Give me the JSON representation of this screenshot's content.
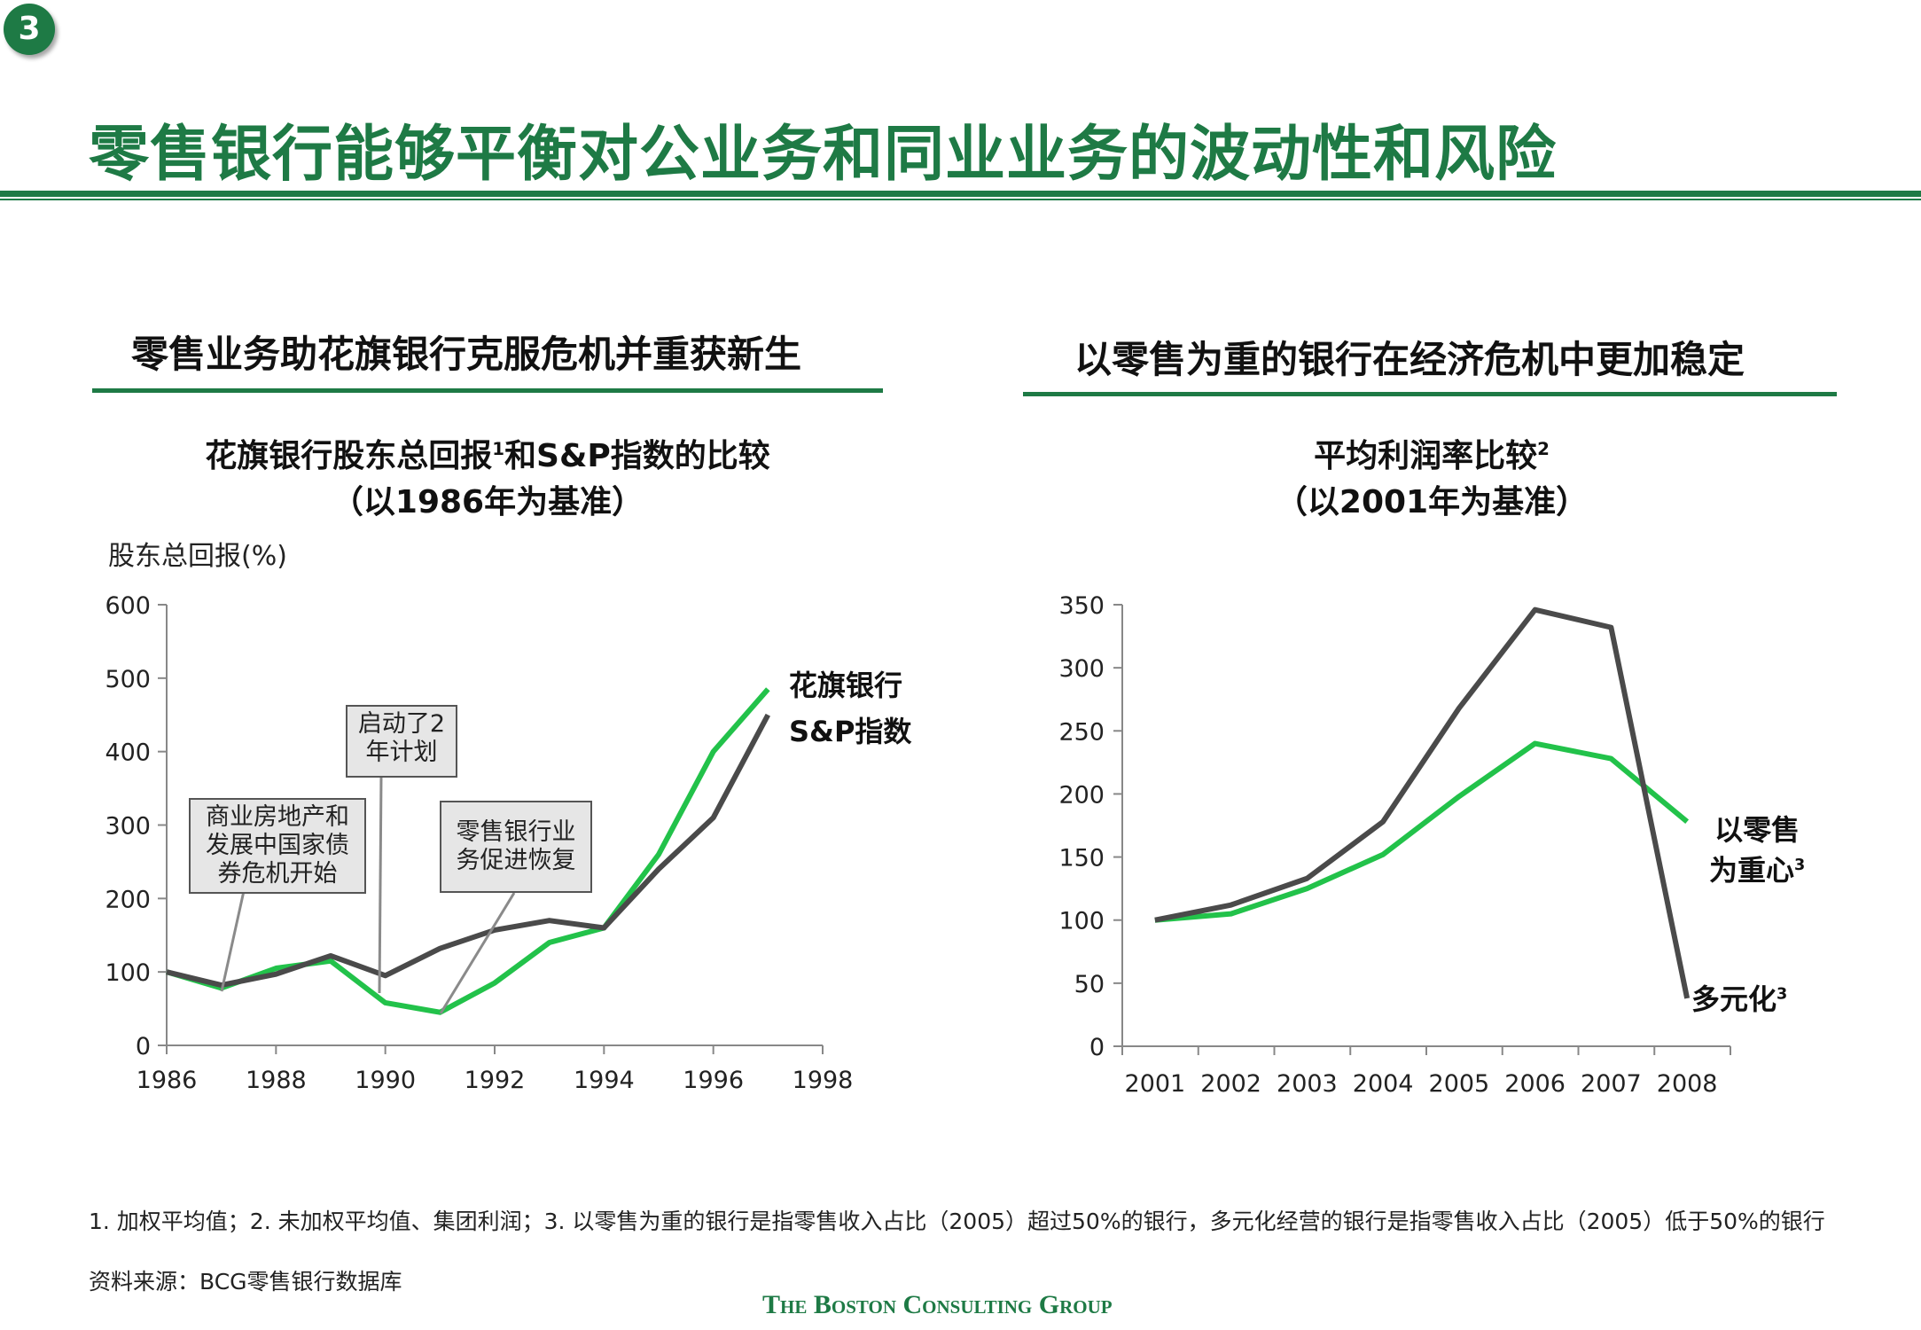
{
  "page": {
    "badge": "3",
    "title": "零售银行能够平衡对公业务和同业业务的波动性和风险",
    "footnote": "1. 加权平均值；2. 未加权平均值、集团利润；3. 以零售为重的银行是指零售收入占比（2005）超过50%的银行，多元化经营的银行是指零售收入占比（2005）低于50%的银行",
    "source": "资料来源：BCG零售银行数据库",
    "brand": "The Boston Consulting Group",
    "colors": {
      "green": "#22c24a",
      "dark": "#4a4a4a",
      "brand": "#1e7a45"
    }
  },
  "left": {
    "panel_title": "零售业务助花旗银行克服危机并重获新生",
    "subtitle_line1_a": "花旗银行股东总回报",
    "subtitle_sup": "1",
    "subtitle_line1_b": "和S&P指数的比较",
    "subtitle_line2": "（以1986年为基准）",
    "ylabel": "股东总回报(%)",
    "callouts": {
      "c1": "商业房地产和发展中国家债券危机开始",
      "c2": "启动了2年计划",
      "c3": "零售银行业务促进恢复"
    }
  },
  "right": {
    "panel_title": "以零售为重的银行在经济危机中更加稳定",
    "subtitle_line1": "平均利润率比较",
    "subtitle_sup": "2",
    "subtitle_line2": "（以2001年为基准）"
  },
  "chart_data": [
    {
      "type": "line",
      "title": "花旗银行股东总回报和S&P指数的比较（以1986年为基准）",
      "ylabel": "股东总回报(%)",
      "xlabel": "",
      "x": [
        1986,
        1987,
        1988,
        1989,
        1990,
        1991,
        1992,
        1993,
        1994,
        1995,
        1996,
        1997
      ],
      "xticks": [
        "1986",
        "1988",
        "1990",
        "1992",
        "1994",
        "1996",
        "1998"
      ],
      "yticks": [
        "0",
        "100",
        "200",
        "300",
        "400",
        "500",
        "600"
      ],
      "xlim": [
        1986,
        1998
      ],
      "ylim": [
        0,
        600
      ],
      "series": [
        {
          "name": "花旗银行",
          "color": "#22c24a",
          "values": [
            100,
            78,
            105,
            115,
            58,
            45,
            85,
            140,
            160,
            260,
            400,
            485
          ]
        },
        {
          "name": "S&P指数",
          "color": "#4a4a4a",
          "values": [
            100,
            82,
            97,
            122,
            95,
            132,
            157,
            170,
            160,
            240,
            310,
            450
          ]
        }
      ]
    },
    {
      "type": "line",
      "title": "平均利润率比较（以2001年为基准）",
      "xlabel": "",
      "ylabel": "",
      "categories": [
        "2001",
        "2002",
        "2003",
        "2004",
        "2005",
        "2006",
        "2007",
        "2008"
      ],
      "yticks": [
        "0",
        "50",
        "100",
        "150",
        "200",
        "250",
        "300",
        "350"
      ],
      "ylim": [
        0,
        350
      ],
      "series": [
        {
          "name": "以零售为重心",
          "sup": "3",
          "color": "#22c24a",
          "values": [
            100,
            105,
            125,
            152,
            198,
            240,
            228,
            178
          ]
        },
        {
          "name": "多元化",
          "sup": "3",
          "color": "#4a4a4a",
          "values": [
            100,
            112,
            133,
            178,
            268,
            346,
            332,
            38
          ]
        }
      ]
    }
  ]
}
